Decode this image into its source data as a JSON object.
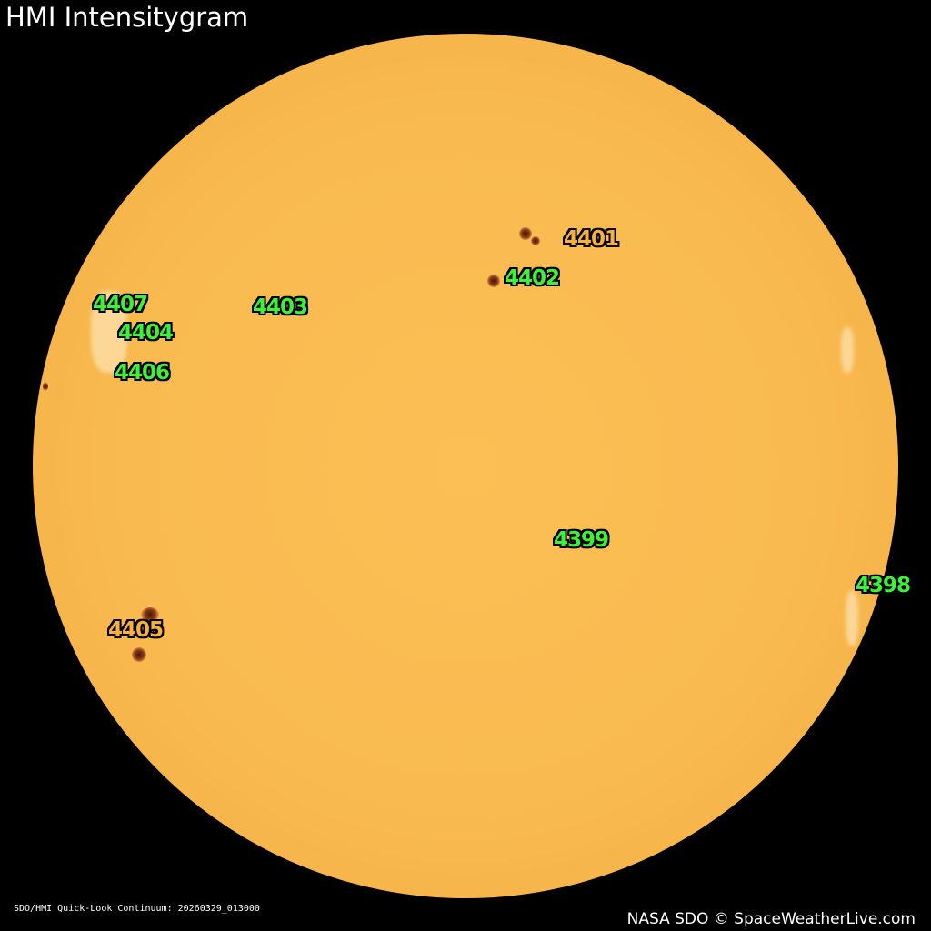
{
  "title": "HMI Intensitygram",
  "colors": {
    "label_green": "#3ef03a",
    "label_orange": "#f6b040",
    "sun_disc": "#f9bb50"
  },
  "regions": [
    {
      "number": "4401",
      "color": "#f6b040"
    },
    {
      "number": "4402",
      "color": "#3ef03a"
    },
    {
      "number": "4403",
      "color": "#3ef03a"
    },
    {
      "number": "4407",
      "color": "#3ef03a"
    },
    {
      "number": "4404",
      "color": "#3ef03a"
    },
    {
      "number": "4406",
      "color": "#3ef03a"
    },
    {
      "number": "4399",
      "color": "#3ef03a"
    },
    {
      "number": "4398",
      "color": "#3ef03a"
    },
    {
      "number": "4405",
      "color": "#f6b040"
    }
  ],
  "caption": "SDO/HMI Quick-Look Continuum: 20260329_013000",
  "credit": "NASA SDO © SpaceWeatherLive.com"
}
